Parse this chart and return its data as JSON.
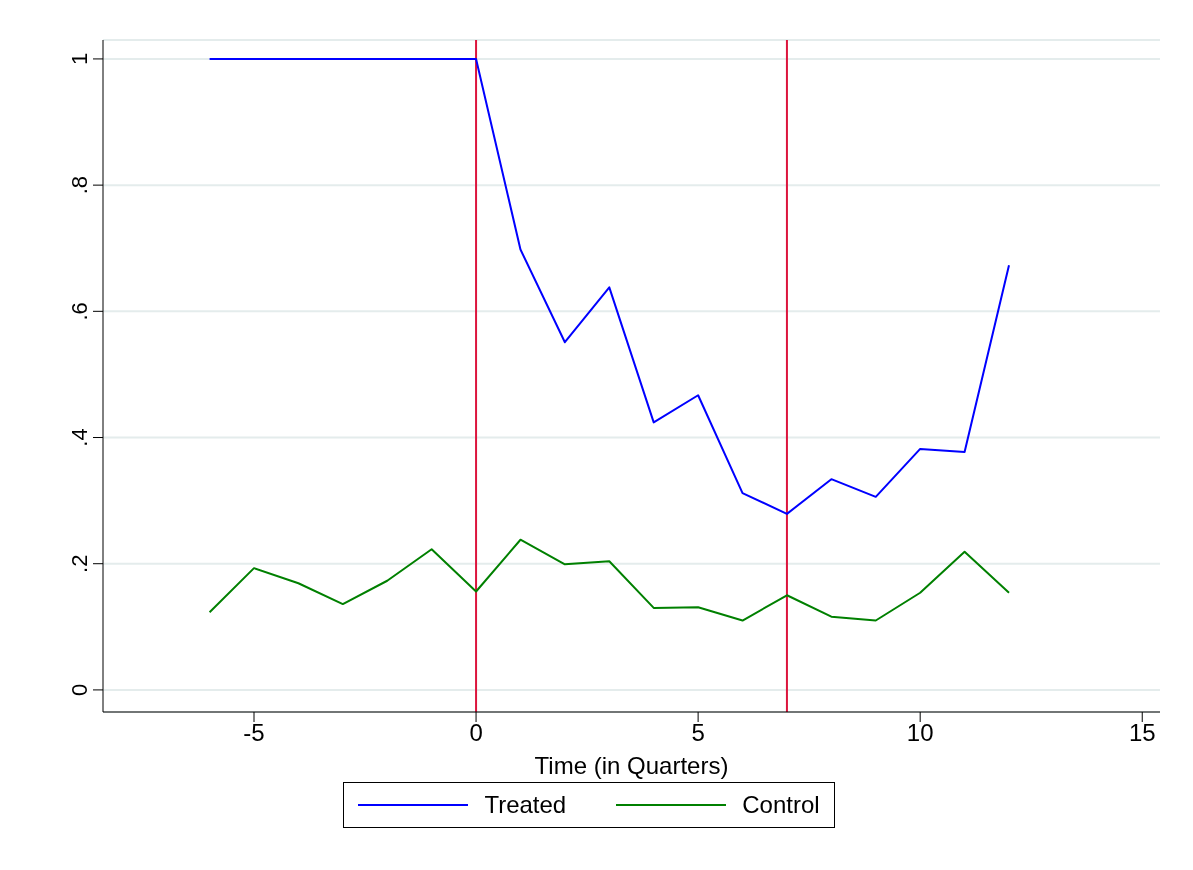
{
  "chart_data": {
    "type": "line",
    "xlabel": "Time (in Quarters)",
    "x": [
      -6,
      -5,
      -4,
      -3,
      -2,
      -1,
      0,
      1,
      2,
      3,
      4,
      5,
      6,
      7,
      8,
      9,
      10,
      11,
      12
    ],
    "series": [
      {
        "name": "Treated",
        "color": "#0000ff",
        "values": [
          1,
          1,
          1,
          1,
          1,
          1,
          1,
          0.698,
          0.551,
          0.638,
          0.424,
          0.467,
          0.312,
          0.279,
          0.334,
          0.306,
          0.382,
          0.377,
          0.673
        ]
      },
      {
        "name": "Control",
        "color": "#008000",
        "values": [
          0.123,
          0.193,
          0.169,
          0.136,
          0.173,
          0.223,
          0.156,
          0.238,
          0.199,
          0.204,
          0.13,
          0.131,
          0.11,
          0.15,
          0.116,
          0.11,
          0.154,
          0.219,
          0.154
        ]
      }
    ],
    "xlim": [
      -8.4,
      15.4
    ],
    "xticks": [
      -5,
      0,
      5,
      10,
      15
    ],
    "ylim": [
      -0.035,
      1.03
    ],
    "yticks": [
      {
        "value": 0,
        "label": "0"
      },
      {
        "value": 0.2,
        "label": ".2"
      },
      {
        "value": 0.4,
        "label": ".4"
      },
      {
        "value": 0.6,
        "label": ".6"
      },
      {
        "value": 0.8,
        "label": ".8"
      },
      {
        "value": 1,
        "label": "1"
      }
    ],
    "ref_lines": [
      {
        "axis": "x",
        "value": 0,
        "color": "#dc143c"
      },
      {
        "axis": "x",
        "value": 7,
        "color": "#dc143c"
      }
    ],
    "grid": "y",
    "legend": "bottom",
    "marker": "none",
    "line_style": "solid"
  }
}
